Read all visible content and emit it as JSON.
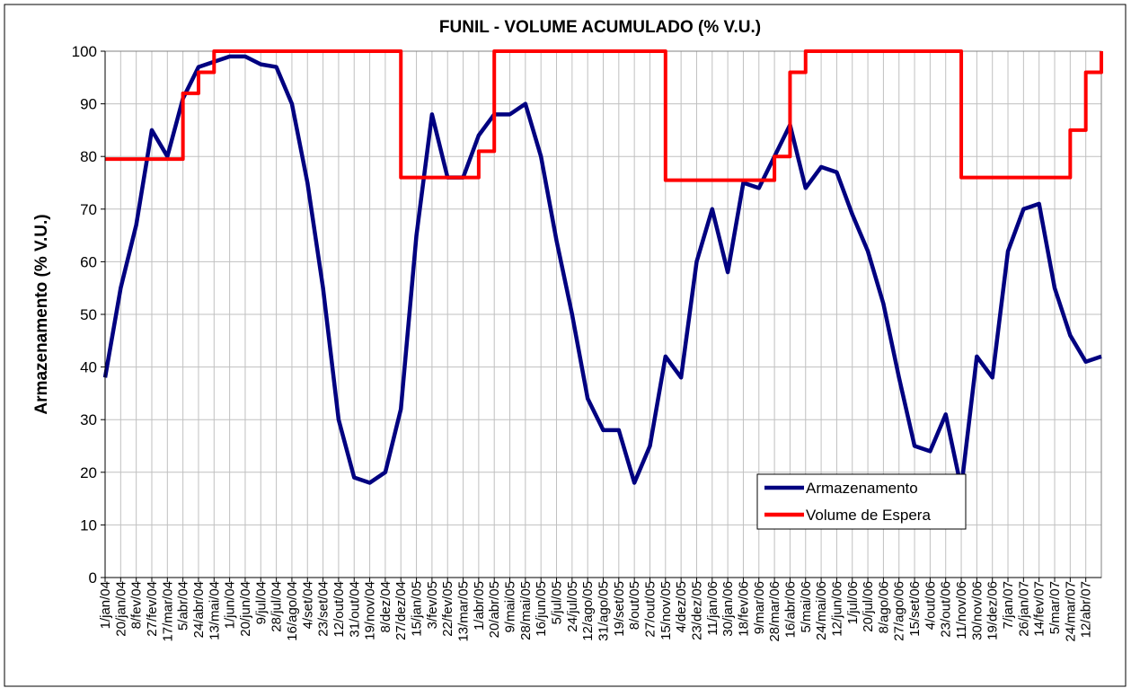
{
  "chart_data": {
    "type": "line",
    "title": "FUNIL - VOLUME ACUMULADO (% V.U.)",
    "y_label": "Armazenamento (% V.U.)",
    "categories": [
      "1/jan/04",
      "20/jan/04",
      "8/fev/04",
      "27/fev/04",
      "17/mar/04",
      "5/abr/04",
      "24/abr/04",
      "13/mai/04",
      "1/jun/04",
      "20/jun/04",
      "9/jul/04",
      "28/jul/04",
      "16/ago/04",
      "4/set/04",
      "23/set/04",
      "12/out/04",
      "31/out/04",
      "19/nov/04",
      "8/dez/04",
      "27/dez/04",
      "15/jan/05",
      "3/fev/05",
      "22/fev/05",
      "13/mar/05",
      "1/abr/05",
      "20/abr/05",
      "9/mai/05",
      "28/mai/05",
      "16/jun/05",
      "5/jul/05",
      "24/jul/05",
      "12/ago/05",
      "31/ago/05",
      "19/set/05",
      "8/out/05",
      "27/out/05",
      "15/nov/05",
      "4/dez/05",
      "23/dez/05",
      "11/jan/06",
      "30/jan/06",
      "18/fev/06",
      "9/mar/06",
      "28/mar/06",
      "16/abr/06",
      "5/mai/06",
      "24/mai/06",
      "12/jun/06",
      "1/jul/06",
      "20/jul/06",
      "8/ago/06",
      "27/ago/06",
      "15/set/06",
      "4/out/06",
      "23/out/06",
      "11/nov/06",
      "30/nov/06",
      "19/dez/06",
      "7/jan/07",
      "26/jan/07",
      "14/fev/07",
      "5/mar/07",
      "24/mar/07",
      "12/abr/07",
      null
    ],
    "series": [
      {
        "name": "Armazenamento",
        "color": "#000080",
        "values": [
          38,
          55,
          67,
          85,
          80,
          91,
          97,
          98,
          99,
          99,
          97.5,
          97,
          90,
          75,
          55,
          30,
          19,
          18,
          20,
          32,
          65,
          88,
          76,
          76,
          84,
          88,
          88,
          90,
          80,
          64,
          50,
          34,
          28,
          28,
          18,
          25,
          42,
          38,
          60,
          70,
          58,
          75,
          74,
          80,
          86,
          74,
          78,
          77,
          69,
          62,
          52,
          38,
          25,
          24,
          31,
          17,
          42,
          38,
          62,
          70,
          71,
          55,
          46,
          41,
          42
        ]
      },
      {
        "name": "Volume de Espera",
        "color": "#ff0000",
        "step": true,
        "values": [
          79.5,
          79.5,
          79.5,
          79.5,
          79.5,
          92,
          96,
          100,
          100,
          100,
          100,
          100,
          100,
          100,
          100,
          100,
          100,
          100,
          100,
          76,
          76,
          76,
          76,
          76,
          81,
          100,
          100,
          100,
          100,
          100,
          100,
          100,
          100,
          100,
          100,
          100,
          75.5,
          75.5,
          75.5,
          75.5,
          75.5,
          75.5,
          75.5,
          80,
          96,
          100,
          100,
          100,
          100,
          100,
          100,
          100,
          100,
          100,
          100,
          76,
          76,
          76,
          76,
          76,
          76,
          76,
          85,
          96,
          100
        ]
      }
    ],
    "ylim": [
      0,
      100
    ],
    "yticks": [
      0,
      10,
      20,
      30,
      40,
      50,
      60,
      70,
      80,
      90,
      100
    ],
    "grid": true
  }
}
